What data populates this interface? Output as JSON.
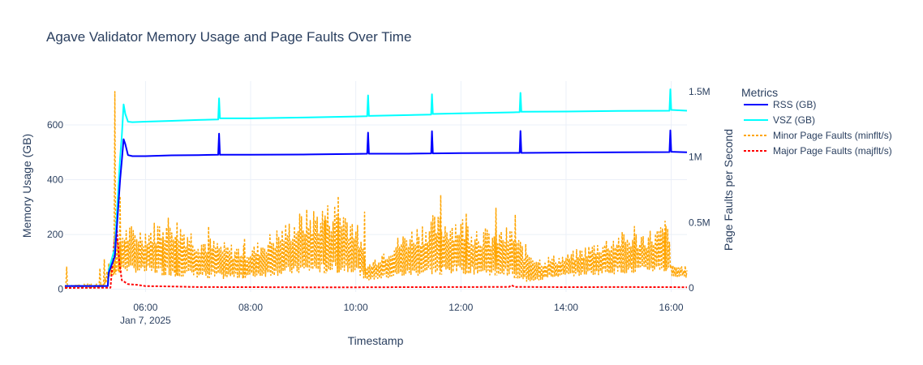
{
  "chart_data": {
    "type": "line",
    "title": "Agave Validator Memory Usage and Page Faults Over Time",
    "xlabel": "Timestamp",
    "ylabel": "Memory Usage (GB)",
    "y2label": "Page Faults per Second",
    "x_range": [
      "2025-01-07T04:28",
      "2025-01-07T16:18"
    ],
    "x_ticks": [
      {
        "t": "2025-01-07T06:00",
        "label": "06:00",
        "sublabel": "Jan 7, 2025"
      },
      {
        "t": "2025-01-07T08:00",
        "label": "08:00",
        "sublabel": ""
      },
      {
        "t": "2025-01-07T10:00",
        "label": "10:00",
        "sublabel": ""
      },
      {
        "t": "2025-01-07T12:00",
        "label": "12:00",
        "sublabel": ""
      },
      {
        "t": "2025-01-07T14:00",
        "label": "14:00",
        "sublabel": ""
      },
      {
        "t": "2025-01-07T16:00",
        "label": "16:00",
        "sublabel": ""
      }
    ],
    "ylim": [
      -10,
      760
    ],
    "y_ticks": [
      {
        "v": 0,
        "label": "0"
      },
      {
        "v": 200,
        "label": "200"
      },
      {
        "v": 400,
        "label": "400"
      },
      {
        "v": 600,
        "label": "600"
      }
    ],
    "y2lim": [
      -30000,
      1580000
    ],
    "y2_ticks": [
      {
        "v": 0,
        "label": "0"
      },
      {
        "v": 500000,
        "label": "0.5M"
      },
      {
        "v": 1000000,
        "label": "1M"
      },
      {
        "v": 1500000,
        "label": "1.5M"
      }
    ],
    "grid": true,
    "legend": {
      "title": "Metrics",
      "placement": "right"
    },
    "series": [
      {
        "name": "RSS (GB)",
        "axis": "y",
        "color": "#0000ff",
        "dash": "solid",
        "points": [
          [
            "04:28",
            12
          ],
          [
            "05:17",
            12
          ],
          [
            "05:18",
            60
          ],
          [
            "05:25",
            120
          ],
          [
            "05:31",
            400
          ],
          [
            "05:33",
            470
          ],
          [
            "05:35",
            548
          ],
          [
            "05:37",
            530
          ],
          [
            "05:40",
            490
          ],
          [
            "05:45",
            486
          ],
          [
            "06:00",
            486
          ],
          [
            "06:30",
            489
          ],
          [
            "07:00",
            490
          ],
          [
            "07:23",
            491
          ],
          [
            "07:24",
            568
          ],
          [
            "07:25",
            491
          ],
          [
            "08:00",
            491
          ],
          [
            "09:00",
            492
          ],
          [
            "10:00",
            494
          ],
          [
            "10:13",
            495
          ],
          [
            "10:14",
            572
          ],
          [
            "10:15",
            495
          ],
          [
            "11:00",
            495
          ],
          [
            "11:26",
            496
          ],
          [
            "11:27",
            577
          ],
          [
            "11:28",
            496
          ],
          [
            "12:00",
            497
          ],
          [
            "13:00",
            498
          ],
          [
            "13:07",
            498
          ],
          [
            "13:08",
            578
          ],
          [
            "13:09",
            498
          ],
          [
            "14:00",
            499
          ],
          [
            "15:00",
            500
          ],
          [
            "15:58",
            501
          ],
          [
            "15:59",
            580
          ],
          [
            "16:00",
            502
          ],
          [
            "16:18",
            500
          ]
        ]
      },
      {
        "name": "VSZ (GB)",
        "axis": "y",
        "color": "#00ffff",
        "dash": "solid",
        "points": [
          [
            "04:28",
            12
          ],
          [
            "05:17",
            12
          ],
          [
            "05:18",
            70
          ],
          [
            "05:25",
            150
          ],
          [
            "05:31",
            480
          ],
          [
            "05:33",
            560
          ],
          [
            "05:35",
            675
          ],
          [
            "05:37",
            640
          ],
          [
            "05:40",
            612
          ],
          [
            "05:45",
            610
          ],
          [
            "06:00",
            612
          ],
          [
            "06:30",
            615
          ],
          [
            "07:00",
            618
          ],
          [
            "07:23",
            620
          ],
          [
            "07:24",
            697
          ],
          [
            "07:25",
            624
          ],
          [
            "08:00",
            624
          ],
          [
            "09:00",
            627
          ],
          [
            "10:00",
            631
          ],
          [
            "10:13",
            632
          ],
          [
            "10:14",
            708
          ],
          [
            "10:15",
            633
          ],
          [
            "11:00",
            636
          ],
          [
            "11:26",
            638
          ],
          [
            "11:27",
            712
          ],
          [
            "11:28",
            640
          ],
          [
            "12:00",
            642
          ],
          [
            "13:00",
            646
          ],
          [
            "13:07",
            647
          ],
          [
            "13:08",
            717
          ],
          [
            "13:09",
            648
          ],
          [
            "14:00",
            649
          ],
          [
            "15:00",
            651
          ],
          [
            "15:58",
            652
          ],
          [
            "15:59",
            730
          ],
          [
            "16:00",
            655
          ],
          [
            "16:18",
            652
          ]
        ]
      },
      {
        "name": "Minor Page Faults (minflt/s)",
        "axis": "y2",
        "color": "#ffa500",
        "dash": "dot",
        "baseline": [
          [
            "04:28",
            5000
          ],
          [
            "05:12",
            5000
          ],
          [
            "05:20",
            90000
          ],
          [
            "05:35",
            130000
          ],
          [
            "06:30",
            90000
          ],
          [
            "07:30",
            70000
          ],
          [
            "08:00",
            80000
          ],
          [
            "09:00",
            110000
          ],
          [
            "10:00",
            120000
          ],
          [
            "10:13",
            60000
          ],
          [
            "10:30",
            70000
          ],
          [
            "11:00",
            90000
          ],
          [
            "12:00",
            110000
          ],
          [
            "13:00",
            90000
          ],
          [
            "13:07",
            40000
          ],
          [
            "13:30",
            60000
          ],
          [
            "14:00",
            90000
          ],
          [
            "15:00",
            110000
          ],
          [
            "15:57",
            130000
          ],
          [
            "16:00",
            90000
          ],
          [
            "16:18",
            80000
          ]
        ],
        "envelope": [
          [
            "04:28",
            20000
          ],
          [
            "05:12",
            40000
          ],
          [
            "05:20",
            250000
          ],
          [
            "05:35",
            480000
          ],
          [
            "06:00",
            480000
          ],
          [
            "06:30",
            580000
          ],
          [
            "07:00",
            420000
          ],
          [
            "07:30",
            350000
          ],
          [
            "08:00",
            320000
          ],
          [
            "09:00",
            600000
          ],
          [
            "09:40",
            680000
          ],
          [
            "10:00",
            540000
          ],
          [
            "10:13",
            180000
          ],
          [
            "10:30",
            300000
          ],
          [
            "11:00",
            460000
          ],
          [
            "11:27",
            560000
          ],
          [
            "12:00",
            560000
          ],
          [
            "12:30",
            460000
          ],
          [
            "13:00",
            470000
          ],
          [
            "13:07",
            380000
          ],
          [
            "13:30",
            240000
          ],
          [
            "14:00",
            260000
          ],
          [
            "14:20",
            320000
          ],
          [
            "15:00",
            430000
          ],
          [
            "15:30",
            440000
          ],
          [
            "15:59",
            510000
          ],
          [
            "16:00",
            180000
          ],
          [
            "16:18",
            170000
          ]
        ],
        "spikes": [
          [
            "04:30",
            160000
          ],
          [
            "05:08",
            150000
          ],
          [
            "05:13",
            220000
          ],
          [
            "05:25",
            1500000
          ],
          [
            "05:31",
            700000
          ],
          [
            "06:20",
            430000
          ],
          [
            "06:35",
            380000
          ],
          [
            "07:12",
            470000
          ],
          [
            "07:53",
            380000
          ],
          [
            "09:25",
            550000
          ],
          [
            "09:40",
            700000
          ],
          [
            "10:10",
            580000
          ],
          [
            "11:37",
            710000
          ],
          [
            "12:06",
            570000
          ],
          [
            "12:40",
            610000
          ],
          [
            "13:02",
            560000
          ],
          [
            "15:18",
            470000
          ],
          [
            "15:53",
            510000
          ]
        ]
      },
      {
        "name": "Major Page Faults (majflt/s)",
        "axis": "y2",
        "color": "#ff0000",
        "dash": "dot",
        "points": [
          [
            "04:28",
            1000
          ],
          [
            "05:20",
            3000
          ],
          [
            "05:24",
            320000
          ],
          [
            "05:27",
            480000
          ],
          [
            "05:30",
            200000
          ],
          [
            "05:33",
            60000
          ],
          [
            "05:40",
            30000
          ],
          [
            "05:50",
            25000
          ],
          [
            "06:00",
            15000
          ],
          [
            "06:30",
            12000
          ],
          [
            "07:00",
            8000
          ],
          [
            "08:00",
            7000
          ],
          [
            "09:00",
            6000
          ],
          [
            "10:00",
            6000
          ],
          [
            "11:00",
            7000
          ],
          [
            "12:00",
            8000
          ],
          [
            "12:55",
            9000
          ],
          [
            "12:58",
            22000
          ],
          [
            "13:01",
            9000
          ],
          [
            "14:00",
            7000
          ],
          [
            "15:00",
            8000
          ],
          [
            "16:00",
            7000
          ],
          [
            "16:18",
            6000
          ]
        ]
      }
    ]
  }
}
